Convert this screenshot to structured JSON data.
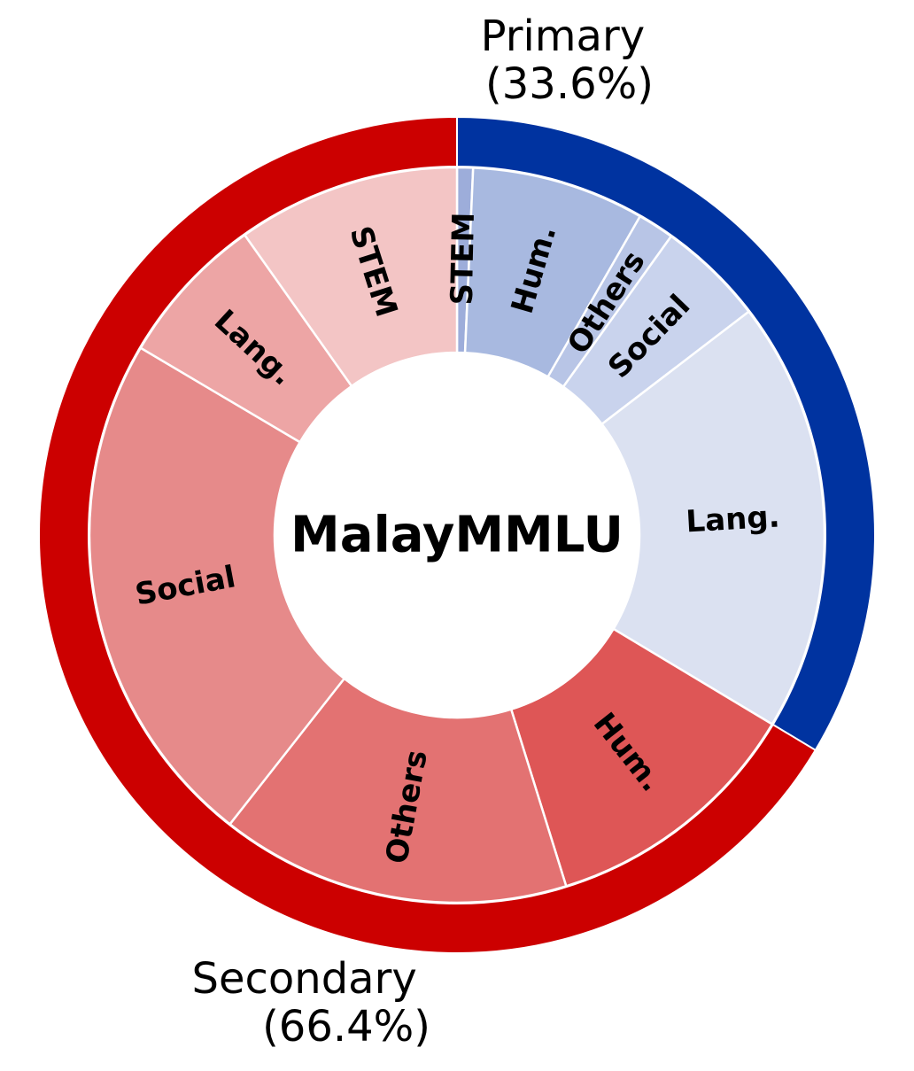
{
  "chart_data": {
    "type": "pie",
    "title": "MalayMMLU",
    "outer_ring": [
      {
        "name": "Primary",
        "percent_label": "(33.6%)",
        "value": 33.6,
        "color": "#0033A0"
      },
      {
        "name": "Secondary",
        "percent_label": "(66.4%)",
        "value": 66.4,
        "color": "#CC0000"
      }
    ],
    "inner_ring": [
      {
        "group": "Primary",
        "label": "STEM",
        "value": 0.7,
        "color": "#9DADDA"
      },
      {
        "group": "Primary",
        "label": "Hum.",
        "value": 7.6,
        "color": "#A8B9E0"
      },
      {
        "group": "Primary",
        "label": "Others",
        "value": 1.6,
        "color": "#B8C5E6"
      },
      {
        "group": "Primary",
        "label": "Social",
        "value": 4.7,
        "color": "#C9D3ED"
      },
      {
        "group": "Primary",
        "label": "Lang.",
        "value": 19.0,
        "color": "#DBE1F1"
      },
      {
        "group": "Secondary",
        "label": "Hum.",
        "value": 11.6,
        "color": "#DE5656"
      },
      {
        "group": "Secondary",
        "label": "Others",
        "value": 15.4,
        "color": "#E37272"
      },
      {
        "group": "Secondary",
        "label": "Social",
        "value": 22.9,
        "color": "#E68A8A"
      },
      {
        "group": "Secondary",
        "label": "Lang.",
        "value": 6.7,
        "color": "#EDA5A5"
      },
      {
        "group": "Secondary",
        "label": "STEM",
        "value": 9.8,
        "color": "#F3C5C5"
      }
    ]
  }
}
